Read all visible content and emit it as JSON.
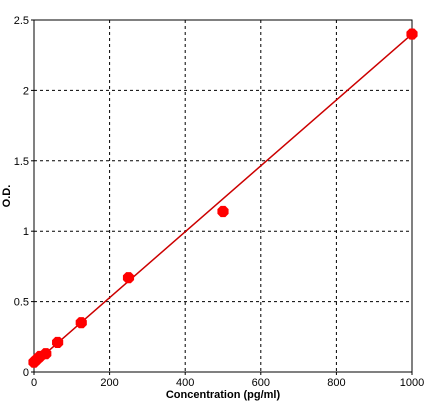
{
  "chart_data": {
    "type": "scatter",
    "xlabel": "Concentration (pg/ml)",
    "ylabel": "O.D.",
    "xlim": [
      0,
      1000
    ],
    "ylim": [
      0,
      2.5
    ],
    "x_ticks": [
      "0",
      "200",
      "400",
      "600",
      "800",
      "1000"
    ],
    "y_ticks": [
      "0",
      "0.5",
      "1",
      "1.5",
      "2",
      "2.5"
    ],
    "grid": true,
    "series": [
      {
        "color": "#ff0000",
        "points": [
          {
            "x": 0,
            "y": 0.07
          },
          {
            "x": 7.8,
            "y": 0.09
          },
          {
            "x": 15.6,
            "y": 0.11
          },
          {
            "x": 31.2,
            "y": 0.13
          },
          {
            "x": 62.5,
            "y": 0.21
          },
          {
            "x": 125,
            "y": 0.35
          },
          {
            "x": 250,
            "y": 0.67
          },
          {
            "x": 500,
            "y": 1.14
          },
          {
            "x": 1000,
            "y": 2.4
          }
        ]
      }
    ],
    "fit_line": {
      "color": "#cc0000",
      "points": [
        {
          "x": 0,
          "y": 0.06
        },
        {
          "x": 1000,
          "y": 2.4
        }
      ]
    }
  }
}
